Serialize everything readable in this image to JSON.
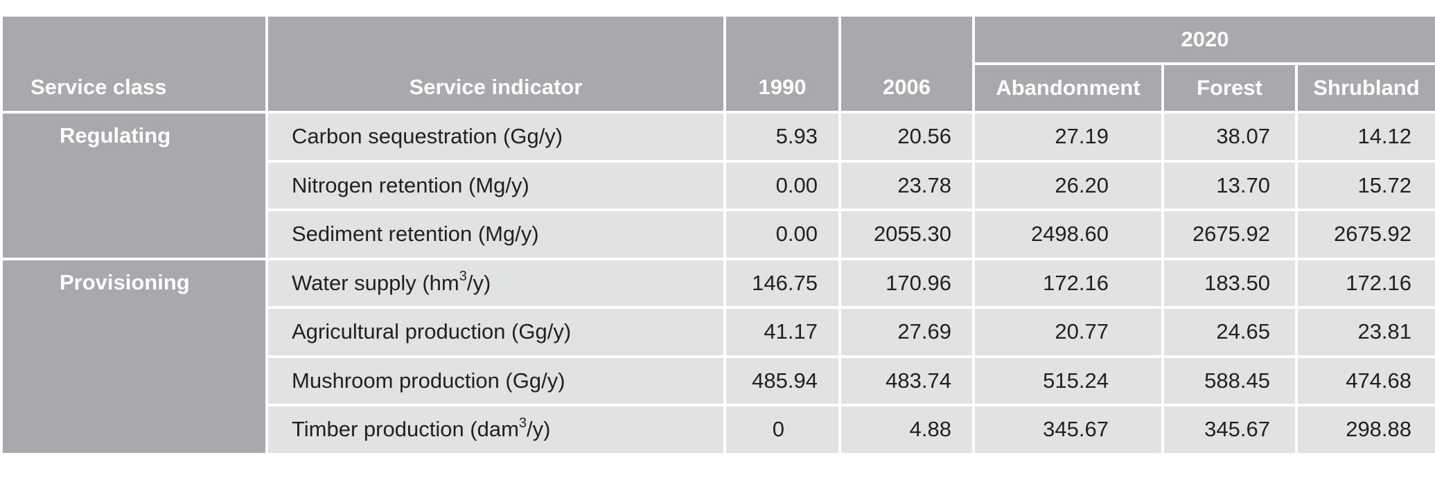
{
  "header": {
    "service_class": "Service class",
    "service_indicator": "Service indicator",
    "y1990": "1990",
    "y2006": "2006",
    "y2020": "2020",
    "abandonment": "Abandonment",
    "forest": "Forest",
    "shrubland": "Shrubland"
  },
  "classes": {
    "regulating": "Regulating",
    "provisioning": "Provisioning"
  },
  "rows": [
    {
      "ind_pre": "Carbon sequestration (Gg/y)",
      "sup": "",
      "ind_post": "",
      "v1990": "5.93",
      "v2006": "20.56",
      "ab": "27.19",
      "fo": "38.07",
      "sh": "14.12"
    },
    {
      "ind_pre": "Nitrogen retention (Mg/y)",
      "sup": "",
      "ind_post": "",
      "v1990": "0.00",
      "v2006": "23.78",
      "ab": "26.20",
      "fo": "13.70",
      "sh": "15.72"
    },
    {
      "ind_pre": "Sediment retention (Mg/y)",
      "sup": "",
      "ind_post": "",
      "v1990": "0.00",
      "v2006": "2055.30",
      "ab": "2498.60",
      "fo": "2675.92",
      "sh": "2675.92"
    },
    {
      "ind_pre": "Water supply (hm",
      "sup": "3",
      "ind_post": "/y)",
      "v1990": "146.75",
      "v2006": "170.96",
      "ab": "172.16",
      "fo": "183.50",
      "sh": "172.16"
    },
    {
      "ind_pre": "Agricultural production (Gg/y)",
      "sup": "",
      "ind_post": "",
      "v1990": "41.17",
      "v2006": "27.69",
      "ab": "20.77",
      "fo": "24.65",
      "sh": "23.81"
    },
    {
      "ind_pre": "Mushroom production (Gg/y)",
      "sup": "",
      "ind_post": "",
      "v1990": "485.94",
      "v2006": "483.74",
      "ab": "515.24",
      "fo": "588.45",
      "sh": "474.68"
    },
    {
      "ind_pre": "Timber production (dam",
      "sup": "3",
      "ind_post": "/y)",
      "v1990": "0",
      "v2006": "4.88",
      "ab": "345.67",
      "fo": "345.67",
      "sh": "298.88"
    }
  ],
  "colors": {
    "header_bg": "#a8a9ac",
    "cell_bg": "#e1e2e3",
    "text": "#231f20"
  }
}
